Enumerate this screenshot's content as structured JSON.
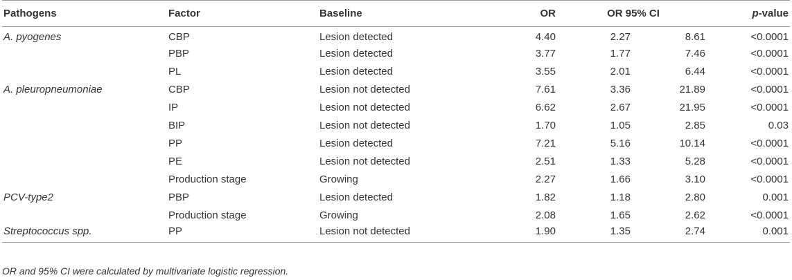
{
  "headers": {
    "pathogens": "Pathogens",
    "factor": "Factor",
    "baseline": "Baseline",
    "or": "OR",
    "ci": "OR 95% CI",
    "p_italic": "p",
    "p_rest": "-value"
  },
  "rows": [
    {
      "pathogen": "A. pyogenes",
      "factor": "CBP",
      "baseline": "Lesion detected",
      "or": "4.40",
      "ci_low": "2.27",
      "ci_high": "8.61",
      "p": "<0.0001"
    },
    {
      "pathogen": "",
      "factor": "PBP",
      "baseline": "Lesion detected",
      "or": "3.77",
      "ci_low": "1.77",
      "ci_high": "7.46",
      "p": "<0.0001"
    },
    {
      "pathogen": "",
      "factor": "PL",
      "baseline": "Lesion detected",
      "or": "3.55",
      "ci_low": "2.01",
      "ci_high": "6.44",
      "p": "<0.0001"
    },
    {
      "pathogen": "A. pleuropneumoniae",
      "factor": "CBP",
      "baseline": "Lesion not detected",
      "or": "7.61",
      "ci_low": "3.36",
      "ci_high": "21.89",
      "p": "<0.0001"
    },
    {
      "pathogen": "",
      "factor": "IP",
      "baseline": "Lesion not detected",
      "or": "6.62",
      "ci_low": "2.67",
      "ci_high": "21.95",
      "p": "<0.0001"
    },
    {
      "pathogen": "",
      "factor": "BIP",
      "baseline": "Lesion not detected",
      "or": "1.70",
      "ci_low": "1.05",
      "ci_high": "2.85",
      "p": "0.03"
    },
    {
      "pathogen": "",
      "factor": "PP",
      "baseline": "Lesion detected",
      "or": "7.21",
      "ci_low": "5.16",
      "ci_high": "10.14",
      "p": "<0.0001"
    },
    {
      "pathogen": "",
      "factor": "PE",
      "baseline": "Lesion not detected",
      "or": "2.51",
      "ci_low": "1.33",
      "ci_high": "5.28",
      "p": "<0.0001"
    },
    {
      "pathogen": "",
      "factor": "Production stage",
      "baseline": "Growing",
      "or": "2.27",
      "ci_low": "1.66",
      "ci_high": "3.10",
      "p": "<0.0001"
    },
    {
      "pathogen": "PCV-type2",
      "factor": "PBP",
      "baseline": "Lesion detected",
      "or": "1.82",
      "ci_low": "1.18",
      "ci_high": "2.80",
      "p": "0.001"
    },
    {
      "pathogen": "",
      "factor": "Production stage",
      "baseline": "Growing",
      "or": "2.08",
      "ci_low": "1.65",
      "ci_high": "2.62",
      "p": "<0.0001"
    },
    {
      "pathogen": "Streptococcus spp.",
      "factor": "PP",
      "baseline": "Lesion not detected",
      "or": "1.90",
      "ci_low": "1.35",
      "ci_high": "2.74",
      "p": "0.001"
    }
  ],
  "footnote": "OR and 95% CI were calculated by multivariate logistic regression."
}
